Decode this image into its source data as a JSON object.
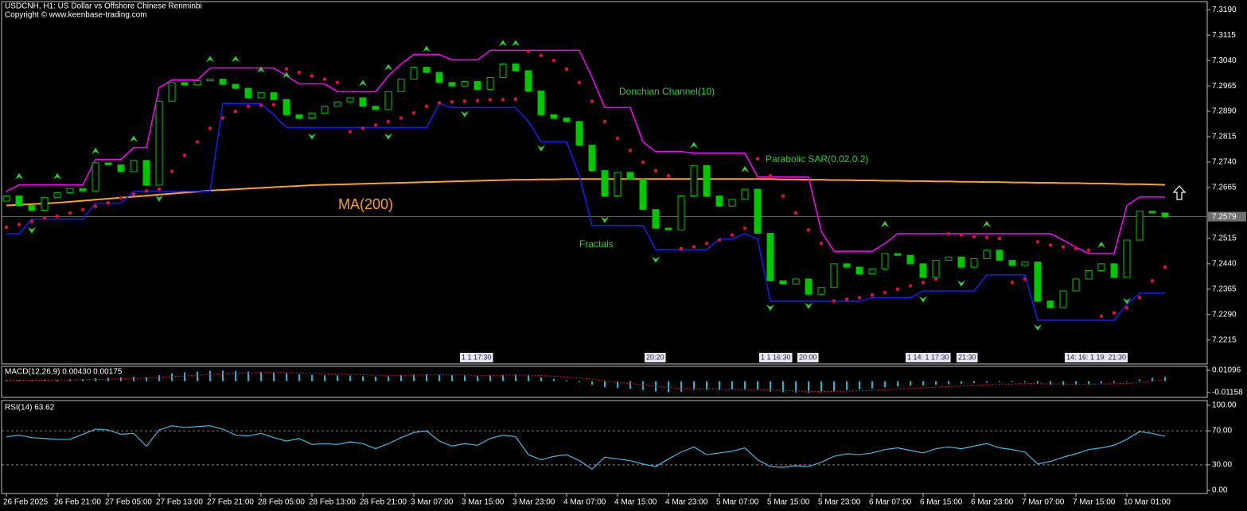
{
  "chart_data": {
    "type": "candlestick",
    "title": "USDCNH, H1:  US Dollar vs Offshore Chinese Renminbi",
    "subtitle": "Copyright © www.keenbase-trading.com",
    "grid": false,
    "colors": {
      "up": "#00c800",
      "down": "#00c800",
      "background": "#000000",
      "axis": "#c0c0c0"
    },
    "ylim": [
      7.2144,
      7.3214
    ],
    "yticks": [
      {
        "value": 7.319,
        "label": "7.3190"
      },
      7.3115,
      {
        "value": 7.304,
        "label": "7.3040"
      },
      7.2965,
      {
        "value": 7.289,
        "label": "7.2890"
      },
      7.2815,
      {
        "value": 7.274,
        "label": "7.2740"
      },
      7.2665,
      7.2515,
      {
        "value": 7.244,
        "label": "7.2440"
      },
      7.2365,
      {
        "value": 7.229,
        "label": "7.2290"
      },
      7.2215
    ],
    "last_price": 7.2579,
    "categories": [
      "26 Feb 2025",
      null,
      null,
      null,
      "26 Feb 21:00",
      null,
      null,
      null,
      "27 Feb 05:00",
      null,
      null,
      null,
      "27 Feb 13:00",
      null,
      null,
      null,
      "27 Feb 21:00",
      null,
      null,
      null,
      "28 Feb 05:00",
      null,
      null,
      null,
      "28 Feb 13:00",
      null,
      null,
      null,
      "28 Feb 21:00",
      null,
      null,
      null,
      "3 Mar 07:00",
      null,
      null,
      null,
      "3 Mar 15:00",
      null,
      null,
      null,
      "3 Mar 23:00",
      null,
      null,
      null,
      "4 Mar 07:00",
      null,
      null,
      null,
      "4 Mar 15:00",
      null,
      null,
      null,
      "4 Mar 23:00",
      null,
      null,
      null,
      "5 Mar 07:00",
      null,
      null,
      null,
      "5 Mar 15:00",
      null,
      null,
      null,
      "5 Mar 23:00",
      null,
      null,
      null,
      "6 Mar 07:00",
      null,
      null,
      null,
      "6 Mar 15:00",
      null,
      null,
      null,
      "6 Mar 23:00",
      null,
      null,
      null,
      "7 Mar 07:00",
      null,
      null,
      null,
      "7 Mar 15:00",
      null,
      null,
      null,
      "10 Mar 01:00",
      null,
      null,
      null
    ],
    "open": [
      7.2625,
      7.264,
      7.2612,
      7.2598,
      7.2636,
      7.265,
      7.2662,
      7.2655,
      7.2738,
      7.2732,
      7.2712,
      7.2745,
      7.2672,
      7.292,
      7.2975,
      7.2968,
      7.298,
      7.2985,
      7.297,
      7.2958,
      7.293,
      7.2945,
      7.2925,
      7.288,
      7.287,
      7.2885,
      7.2905,
      7.2918,
      7.293,
      7.2905,
      7.2895,
      7.2948,
      7.2985,
      7.302,
      7.3005,
      7.2975,
      7.2965,
      7.2978,
      7.2955,
      7.299,
      7.303,
      7.301,
      7.295,
      7.288,
      7.287,
      7.286,
      7.279,
      7.2715,
      7.264,
      7.271,
      7.269,
      7.26,
      7.2545,
      7.254,
      7.264,
      7.273,
      7.264,
      7.261,
      7.263,
      7.266,
      7.253,
      7.239,
      7.238,
      7.2395,
      7.235,
      7.237,
      7.244,
      7.243,
      7.241,
      7.2425,
      7.247,
      7.2465,
      7.244,
      7.24,
      7.245,
      7.246,
      7.243,
      7.2455,
      7.248,
      7.245,
      7.2435,
      7.2445,
      7.233,
      7.231,
      7.236,
      7.2395,
      7.242,
      7.244,
      7.24,
      7.251,
      7.2595,
      7.259
    ],
    "close": [
      7.264,
      7.2612,
      7.2598,
      7.2636,
      7.265,
      7.2662,
      7.2655,
      7.2738,
      7.2732,
      7.2712,
      7.2745,
      7.2672,
      7.292,
      7.2975,
      7.2968,
      7.298,
      7.2985,
      7.297,
      7.2958,
      7.293,
      7.2945,
      7.2925,
      7.288,
      7.287,
      7.2885,
      7.2905,
      7.2918,
      7.293,
      7.2905,
      7.2895,
      7.2948,
      7.2985,
      7.302,
      7.3005,
      7.2975,
      7.2965,
      7.2978,
      7.2955,
      7.299,
      7.303,
      7.301,
      7.295,
      7.288,
      7.287,
      7.286,
      7.279,
      7.2715,
      7.264,
      7.271,
      7.269,
      7.26,
      7.2545,
      7.254,
      7.264,
      7.273,
      7.264,
      7.261,
      7.263,
      7.266,
      7.253,
      7.239,
      7.238,
      7.2395,
      7.235,
      7.237,
      7.244,
      7.243,
      7.241,
      7.2425,
      7.247,
      7.2465,
      7.244,
      7.24,
      7.245,
      7.246,
      7.243,
      7.2455,
      7.248,
      7.245,
      7.2435,
      7.2445,
      7.233,
      7.231,
      7.236,
      7.2395,
      7.242,
      7.244,
      7.24,
      7.251,
      7.2595,
      7.259,
      7.2579
    ],
    "donchian": {
      "name": "Donchian Channel(10)",
      "upper_color": "#ff00ff",
      "lower_color": "#1a1aff",
      "upper": [
        7.2654,
        7.2673,
        7.2673,
        7.2673,
        7.2673,
        7.2673,
        7.2673,
        7.2748,
        7.2748,
        7.2748,
        7.2783,
        7.2783,
        7.296,
        7.2983,
        7.2983,
        7.2983,
        7.3018,
        7.3018,
        7.3018,
        7.3018,
        7.3018,
        7.3018,
        7.2995,
        7.2971,
        7.2971,
        7.2971,
        7.2948,
        7.2948,
        7.2948,
        7.2948,
        7.2995,
        7.303,
        7.3058,
        7.3058,
        7.3058,
        7.3042,
        7.3042,
        7.3042,
        7.307,
        7.307,
        7.307,
        7.307,
        7.307,
        7.307,
        7.307,
        7.307,
        7.299,
        7.2901,
        7.2901,
        7.2901,
        7.28,
        7.2771,
        7.2771,
        7.2771,
        7.2767,
        7.2767,
        7.2767,
        7.2767,
        7.2767,
        7.2696,
        7.2696,
        7.2696,
        7.2696,
        7.2696,
        7.2536,
        7.2477,
        7.2477,
        7.2477,
        7.2477,
        7.25,
        7.2529,
        7.2529,
        7.2529,
        7.2529,
        7.2529,
        7.2529,
        7.2529,
        7.2529,
        7.2529,
        7.2529,
        7.2529,
        7.2529,
        7.2529,
        7.251,
        7.2489,
        7.247,
        7.247,
        7.247,
        7.2612,
        7.2637,
        7.2637,
        7.2637
      ],
      "lower": [
        7.2529,
        7.2529,
        7.2572,
        7.2572,
        7.2572,
        7.2572,
        7.2572,
        7.2619,
        7.2619,
        7.2619,
        7.2654,
        7.2654,
        7.2654,
        7.2654,
        7.2654,
        7.2654,
        7.2654,
        7.2913,
        7.2913,
        7.2913,
        7.2913,
        7.288,
        7.2842,
        7.2842,
        7.2842,
        7.2842,
        7.2842,
        7.2842,
        7.2842,
        7.2842,
        7.2842,
        7.2842,
        7.2842,
        7.2842,
        7.2913,
        7.2901,
        7.2901,
        7.2901,
        7.2901,
        7.2901,
        7.2901,
        7.286,
        7.28,
        7.28,
        7.28,
        7.27,
        7.2553,
        7.2553,
        7.2553,
        7.2553,
        7.2553,
        7.2482,
        7.2482,
        7.2482,
        7.2482,
        7.2482,
        7.2513,
        7.2513,
        7.2529,
        7.2513,
        7.2329,
        7.2329,
        7.2329,
        7.2329,
        7.2329,
        7.2329,
        7.2329,
        7.2329,
        7.234,
        7.234,
        7.234,
        7.234,
        7.236,
        7.236,
        7.236,
        7.236,
        7.236,
        7.2407,
        7.2407,
        7.2407,
        7.2407,
        7.2273,
        7.2273,
        7.2273,
        7.2273,
        7.2273,
        7.2273,
        7.2273,
        7.232,
        7.2353,
        7.2353,
        7.2353
      ]
    },
    "sar": {
      "name": "Parabolic SAR(0.02,0.2)",
      "color": "#e0103a",
      "values": [
        7.2548,
        7.2556,
        7.2565,
        7.2575,
        7.258,
        7.259,
        7.26,
        7.261,
        7.262,
        7.2635,
        7.2645,
        7.2655,
        7.266,
        7.2713,
        7.276,
        7.28,
        7.284,
        7.287,
        7.289,
        7.2905,
        7.2908,
        7.291,
        7.3015,
        7.3005,
        7.2995,
        7.2985,
        7.2975,
        7.283,
        7.284,
        7.285,
        7.286,
        7.287,
        7.2885,
        7.2905,
        7.2915,
        7.2918,
        7.292,
        7.2922,
        7.2924,
        7.2925,
        7.2926,
        7.3068,
        7.3055,
        7.304,
        7.3015,
        7.2975,
        7.292,
        7.286,
        7.281,
        7.2775,
        7.274,
        7.2715,
        7.27,
        7.2485,
        7.249,
        7.25,
        7.251,
        7.2525,
        7.2545,
        7.275,
        7.27,
        7.264,
        7.259,
        7.254,
        7.25,
        7.233,
        7.2335,
        7.234,
        7.2348,
        7.2355,
        7.2365,
        7.2375,
        7.2385,
        7.2395,
        7.2528,
        7.2525,
        7.252,
        7.2518,
        7.2515,
        7.2385,
        7.2395,
        7.2505,
        7.2495,
        7.249,
        7.2485,
        7.248,
        7.2285,
        7.2295,
        7.231,
        7.234,
        7.239,
        7.243
      ]
    },
    "ma": {
      "name": "MA(200)",
      "color": "#ffa020",
      "values": [
        7.2612,
        7.2614,
        7.2616,
        7.2618,
        7.262,
        7.2623,
        7.2626,
        7.2629,
        7.2632,
        7.2635,
        7.2638,
        7.2641,
        7.2644,
        7.2647,
        7.265,
        7.2653,
        7.2656,
        7.2658,
        7.266,
        7.2662,
        7.2664,
        7.2666,
        7.2668,
        7.267,
        7.2672,
        7.2673,
        7.2674,
        7.2675,
        7.2676,
        7.2677,
        7.2678,
        7.2679,
        7.268,
        7.2681,
        7.2682,
        7.2683,
        7.2684,
        7.2685,
        7.2686,
        7.2687,
        7.2688,
        7.2688,
        7.2689,
        7.2689,
        7.269,
        7.269,
        7.269,
        7.269,
        7.269,
        7.269,
        7.269,
        7.269,
        7.269,
        7.269,
        7.269,
        7.269,
        7.269,
        7.269,
        7.269,
        7.269,
        7.269,
        7.2689,
        7.2689,
        7.2688,
        7.2688,
        7.2687,
        7.2687,
        7.2686,
        7.2686,
        7.2685,
        7.2685,
        7.2684,
        7.2684,
        7.2683,
        7.2683,
        7.2682,
        7.2682,
        7.2681,
        7.2681,
        7.268,
        7.268,
        7.2679,
        7.2679,
        7.2678,
        7.2678,
        7.2677,
        7.2677,
        7.2676,
        7.2675,
        7.2675,
        7.2674,
        7.2673
      ]
    },
    "fractals": {
      "name": "Fractals",
      "color": "#32cd32",
      "up": [
        {
          "bar": 1,
          "value": 7.2696
        },
        {
          "bar": 4,
          "value": 7.2696
        },
        {
          "bar": 7,
          "value": 7.2771
        },
        {
          "bar": 10,
          "value": 7.2807
        },
        {
          "bar": 16,
          "value": 7.3042
        },
        {
          "bar": 18,
          "value": 7.3042
        },
        {
          "bar": 20,
          "value": 7.3011
        },
        {
          "bar": 22,
          "value": 7.2995
        },
        {
          "bar": 28,
          "value": 7.2971
        },
        {
          "bar": 30,
          "value": 7.3018
        },
        {
          "bar": 33,
          "value": 7.3072
        },
        {
          "bar": 39,
          "value": 7.3089
        },
        {
          "bar": 40,
          "value": 7.3089
        },
        {
          "bar": 54,
          "value": 7.2788
        },
        {
          "bar": 58,
          "value": 7.2717
        },
        {
          "bar": 69,
          "value": 7.2555
        },
        {
          "bar": 77,
          "value": 7.2555
        },
        {
          "bar": 86,
          "value": 7.2494
        }
      ],
      "down": [
        {
          "bar": 2,
          "value": 7.2541
        },
        {
          "bar": 12,
          "value": 7.2635
        },
        {
          "bar": 24,
          "value": 7.2818
        },
        {
          "bar": 30,
          "value": 7.2818
        },
        {
          "bar": 36,
          "value": 7.2884
        },
        {
          "bar": 42,
          "value": 7.2783
        },
        {
          "bar": 47,
          "value": 7.2572
        },
        {
          "bar": 51,
          "value": 7.2454
        },
        {
          "bar": 60,
          "value": 7.2313
        },
        {
          "bar": 63,
          "value": 7.2318
        },
        {
          "bar": 72,
          "value": 7.2337
        },
        {
          "bar": 75,
          "value": 7.2384
        },
        {
          "bar": 81,
          "value": 7.2254
        },
        {
          "bar": 88,
          "value": 7.2332
        }
      ]
    },
    "event_markers": [
      "1 1 17:30",
      "20:20",
      "1 1 16:30",
      "20:00",
      "1 14: 1 17:30",
      "21:30",
      "14: 16: 1 19: 21:30"
    ],
    "macd": {
      "title": "MACD(12,26,9) 0.00430 0.00175",
      "ylim": [
        -0.0164,
        0.015
      ],
      "yticks": [
        0.01096,
        -0.01158
      ],
      "histogram_color": "#20b8d8",
      "signal_color": "#e0103a",
      "histogram": [
        0.0012,
        0.001,
        0.0008,
        0.001,
        0.0014,
        0.0018,
        0.002,
        0.003,
        0.0036,
        0.004,
        0.0044,
        0.004,
        0.006,
        0.0078,
        0.009,
        0.0098,
        0.0104,
        0.0106,
        0.0104,
        0.0098,
        0.0094,
        0.009,
        0.008,
        0.007,
        0.0064,
        0.006,
        0.0058,
        0.0056,
        0.005,
        0.0046,
        0.005,
        0.006,
        0.0068,
        0.007,
        0.0066,
        0.006,
        0.0058,
        0.0054,
        0.0056,
        0.0064,
        0.0068,
        0.0058,
        0.004,
        0.0024,
        0.001,
        -0.001,
        -0.0035,
        -0.006,
        -0.007,
        -0.0078,
        -0.009,
        -0.0104,
        -0.0112,
        -0.0106,
        -0.009,
        -0.009,
        -0.0092,
        -0.0088,
        -0.0084,
        -0.009,
        -0.0105,
        -0.0112,
        -0.0114,
        -0.0115,
        -0.0112,
        -0.01,
        -0.009,
        -0.0082,
        -0.0074,
        -0.0062,
        -0.0052,
        -0.0046,
        -0.0042,
        -0.0036,
        -0.003,
        -0.0026,
        -0.002,
        -0.0014,
        -0.001,
        -0.001,
        -0.0012,
        -0.0026,
        -0.0038,
        -0.004,
        -0.0036,
        -0.003,
        -0.0022,
        -0.0016,
        -0.0006,
        0.0016,
        0.0034,
        0.0043
      ],
      "signal": [
        0.001,
        0.001,
        0.001,
        0.001,
        0.0011,
        0.0012,
        0.0014,
        0.0017,
        0.002,
        0.0024,
        0.0028,
        0.0031,
        0.0037,
        0.0045,
        0.0053,
        0.0061,
        0.0068,
        0.0075,
        0.0081,
        0.0084,
        0.0087,
        0.0088,
        0.0087,
        0.0084,
        0.008,
        0.0076,
        0.0072,
        0.0069,
        0.0065,
        0.0061,
        0.0059,
        0.0059,
        0.0061,
        0.0063,
        0.0064,
        0.0063,
        0.0062,
        0.006,
        0.0059,
        0.006,
        0.0062,
        0.0061,
        0.0057,
        0.005,
        0.0042,
        0.0032,
        0.0019,
        0.0004,
        -0.001,
        -0.0024,
        -0.0037,
        -0.0051,
        -0.0063,
        -0.0072,
        -0.0076,
        -0.0079,
        -0.0082,
        -0.0083,
        -0.0084,
        -0.0085,
        -0.0089,
        -0.0094,
        -0.0098,
        -0.0102,
        -0.0104,
        -0.0103,
        -0.0101,
        -0.0097,
        -0.0093,
        -0.0087,
        -0.008,
        -0.0073,
        -0.0067,
        -0.0061,
        -0.0055,
        -0.0049,
        -0.0043,
        -0.0038,
        -0.0032,
        -0.0028,
        -0.0025,
        -0.0025,
        -0.0028,
        -0.003,
        -0.0031,
        -0.0031,
        -0.0029,
        -0.0026,
        -0.0022,
        -0.0015,
        -0.0002,
        0.00175
      ]
    },
    "rsi": {
      "title": "RSI(14) 63.62",
      "ylim": [
        -3.7,
        105.6
      ],
      "color": "#48b8e0",
      "yticks": [
        {
          "value": 100,
          "label": "100.00"
        },
        {
          "value": 70,
          "label": "70.00"
        },
        {
          "value": 30,
          "label": "30.00"
        },
        {
          "value": 0,
          "label": "0.00"
        }
      ],
      "levels": [
        70,
        30
      ],
      "values": [
        63,
        65,
        62,
        61,
        60,
        60,
        66,
        72,
        71,
        66,
        67,
        52,
        71,
        76,
        74,
        75,
        76,
        72,
        65,
        64,
        67,
        62,
        58,
        61,
        54,
        55,
        54,
        57,
        55,
        49,
        55,
        62,
        68,
        70,
        58,
        52,
        55,
        53,
        61,
        65,
        63,
        42,
        36,
        40,
        42,
        35,
        25,
        39,
        37,
        35,
        31,
        28,
        37,
        45,
        51,
        42,
        44,
        46,
        50,
        36,
        28,
        27,
        29,
        28,
        33,
        40,
        43,
        42,
        44,
        48,
        50,
        47,
        44,
        49,
        51,
        49,
        52,
        55,
        50,
        48,
        45,
        31,
        34,
        39,
        43,
        48,
        50,
        53,
        60,
        69,
        67,
        63.62
      ]
    }
  }
}
